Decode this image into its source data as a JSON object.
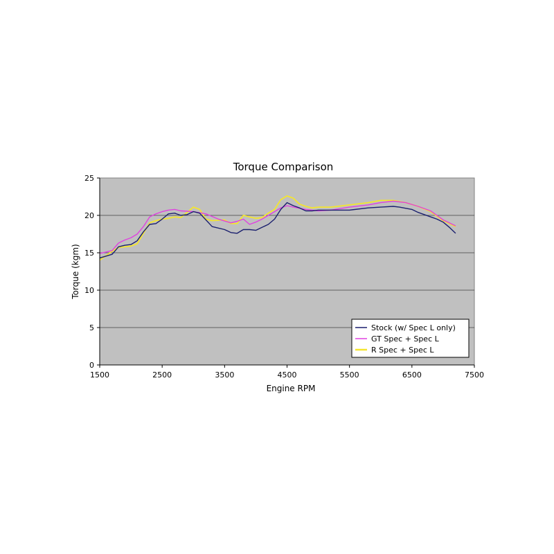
{
  "chart_data": {
    "type": "line",
    "title": "Torque Comparison",
    "xlabel": "Engine RPM",
    "ylabel": "Torque (kgm)",
    "xlim": [
      1500,
      7500
    ],
    "ylim": [
      0,
      25
    ],
    "x_ticks": [
      "1500",
      "2500",
      "3500",
      "4500",
      "5500",
      "6500",
      "7500"
    ],
    "y_ticks": [
      "0",
      "5",
      "10",
      "15",
      "20",
      "25"
    ],
    "grid": "horizontal",
    "legend_position": "bottom-right",
    "plot_background": "#c0c0c0",
    "series": [
      {
        "name": "Stock (w/ Spec L only)",
        "color": "#1a1f6e",
        "x": [
          1500,
          1700,
          1800,
          1900,
          2000,
          2100,
          2200,
          2300,
          2400,
          2500,
          2600,
          2700,
          2800,
          2900,
          3000,
          3100,
          3200,
          3300,
          3500,
          3600,
          3700,
          3800,
          3900,
          4000,
          4100,
          4200,
          4300,
          4400,
          4500,
          4600,
          4700,
          4800,
          4900,
          5000,
          5200,
          5500,
          5800,
          6000,
          6200,
          6300,
          6500,
          6600,
          6800,
          6900,
          7000,
          7100,
          7200
        ],
        "values": [
          14.3,
          14.8,
          15.8,
          16.0,
          16.1,
          16.6,
          17.8,
          18.8,
          18.9,
          19.5,
          20.2,
          20.3,
          20.0,
          20.1,
          20.5,
          20.3,
          19.4,
          18.5,
          18.1,
          17.7,
          17.6,
          18.1,
          18.1,
          18.0,
          18.4,
          18.8,
          19.5,
          20.8,
          21.7,
          21.3,
          21.0,
          20.6,
          20.6,
          20.7,
          20.7,
          20.7,
          21.0,
          21.1,
          21.2,
          21.1,
          20.8,
          20.4,
          19.8,
          19.5,
          19.1,
          18.4,
          17.6
        ]
      },
      {
        "name": "GT Spec + Spec L",
        "color": "#e040e0",
        "x": [
          1500,
          1700,
          1800,
          1900,
          2000,
          2100,
          2200,
          2300,
          2400,
          2500,
          2600,
          2700,
          2800,
          3000,
          3200,
          3400,
          3600,
          3700,
          3800,
          3900,
          4000,
          4100,
          4200,
          4300,
          4400,
          4500,
          4600,
          4800,
          5000,
          5200,
          5500,
          5800,
          6000,
          6200,
          6400,
          6600,
          6800,
          7000,
          7200
        ],
        "values": [
          14.9,
          15.3,
          16.3,
          16.7,
          17.0,
          17.5,
          18.5,
          19.8,
          20.2,
          20.5,
          20.7,
          20.8,
          20.6,
          20.5,
          20.2,
          19.5,
          19.0,
          19.2,
          19.5,
          18.8,
          19.1,
          19.5,
          20.0,
          20.5,
          21.0,
          21.3,
          21.1,
          20.8,
          20.6,
          20.7,
          21.1,
          21.4,
          21.7,
          21.9,
          21.7,
          21.2,
          20.6,
          19.4,
          18.6
        ]
      },
      {
        "name": "R Spec + Spec L",
        "color": "#f4e52e",
        "x": [
          1500,
          1700,
          1800,
          1900,
          2000,
          2100,
          2200,
          2300,
          2400,
          2500,
          2600,
          2700,
          2800,
          2900,
          3000,
          3100,
          3200,
          3300,
          3500,
          3600,
          3700,
          3800,
          3900,
          4000,
          4100,
          4200,
          4300,
          4400,
          4500,
          4600,
          4700,
          4800,
          4900,
          5000,
          5200,
          5500,
          5800,
          6000,
          6200,
          6400,
          6600,
          6800,
          7000,
          7200
        ],
        "values": [
          14.0,
          15.2,
          15.7,
          15.8,
          15.9,
          16.2,
          17.6,
          19.0,
          19.3,
          19.5,
          19.6,
          19.8,
          19.7,
          20.4,
          21.1,
          20.8,
          19.5,
          19.3,
          19.4,
          18.9,
          18.9,
          20.0,
          19.8,
          19.6,
          19.7,
          20.3,
          20.8,
          22.1,
          22.6,
          22.3,
          21.5,
          21.2,
          21.0,
          21.1,
          21.1,
          21.4,
          21.7,
          22.0,
          22.0,
          21.7,
          21.2,
          20.5,
          19.3,
          18.5
        ]
      }
    ]
  }
}
